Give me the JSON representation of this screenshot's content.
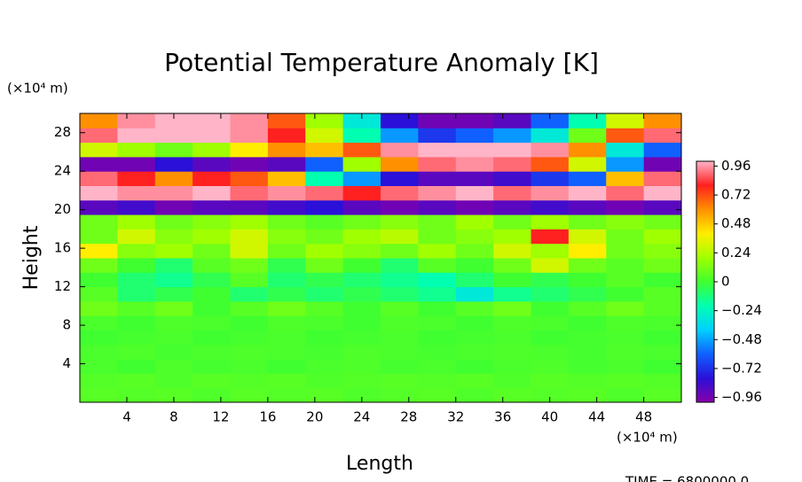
{
  "chart_data": {
    "type": "heatmap",
    "title": "Potential Temperature Anomaly [K]",
    "xlabel": "Length",
    "ylabel": "Height",
    "xunit": "(×10⁴ m)",
    "yunit": "(×10⁴ m)",
    "footer": "TIME = 6800000.0",
    "xlim": [
      0,
      51.2
    ],
    "ylim": [
      0,
      30
    ],
    "xticks": [
      4,
      8,
      12,
      16,
      20,
      24,
      28,
      32,
      36,
      40,
      44,
      48
    ],
    "yticks": [
      4,
      8,
      12,
      16,
      20,
      24,
      28
    ],
    "clim": [
      -1,
      1
    ],
    "cticks": [
      0.96,
      0.72,
      0.48,
      0.24,
      0,
      {
        "value": -0.24,
        "label": "−0.24"
      },
      {
        "value": -0.48,
        "label": "−0.48"
      },
      {
        "value": -0.72,
        "label": "−0.72"
      },
      {
        "value": -0.96,
        "label": "−0.96"
      }
    ],
    "colormap": [
      "#8800a8",
      "#2a10d8",
      "#1060ff",
      "#00d0ff",
      "#00ffb0",
      "#40ff30",
      "#a0ff00",
      "#ffee00",
      "#ff9000",
      "#ff2020",
      "#ffb4c8"
    ],
    "x": [
      1.6,
      4.8,
      8,
      11.2,
      14.4,
      17.6,
      20.8,
      24,
      27.2,
      30.4,
      33.6,
      36.8,
      40,
      43.2,
      46.4,
      49.6
    ],
    "y": [
      0.75,
      2.25,
      3.75,
      5.25,
      6.75,
      8.25,
      9.75,
      11.25,
      12.75,
      14.25,
      15.75,
      17.25,
      18.75,
      20.25,
      21.75,
      23.25,
      24.75,
      26.25,
      27.75,
      29.25
    ],
    "z": [
      [
        0.05,
        0.04,
        0.05,
        0.03,
        0.05,
        0.04,
        0.05,
        0.03,
        0.04,
        0.05,
        0.03,
        0.05,
        0.04,
        0.05,
        0.03,
        0.05
      ],
      [
        0.04,
        0.05,
        0.03,
        0.05,
        0.04,
        0.05,
        0.03,
        0.04,
        0.05,
        0.04,
        0.05,
        0.03,
        0.05,
        0.04,
        0.05,
        0.04
      ],
      [
        0.02,
        0.0,
        0.03,
        0.01,
        0.02,
        0.0,
        0.02,
        0.03,
        0.01,
        0.02,
        0.0,
        0.02,
        0.03,
        0.01,
        0.02,
        0.0
      ],
      [
        0.02,
        0.03,
        0.01,
        0.02,
        0.03,
        0.02,
        0.01,
        0.03,
        0.02,
        0.01,
        0.02,
        0.03,
        0.02,
        0.01,
        0.03,
        0.02
      ],
      [
        0.0,
        0.01,
        0.02,
        0.0,
        0.01,
        0.02,
        0.0,
        0.01,
        0.02,
        0.0,
        0.01,
        0.02,
        0.0,
        0.01,
        0.02,
        0.0
      ],
      [
        0.02,
        0.0,
        0.03,
        0.02,
        0.0,
        0.03,
        0.02,
        0.0,
        0.03,
        0.02,
        0.0,
        0.03,
        0.02,
        0.0,
        0.03,
        0.02
      ],
      [
        0.1,
        0.05,
        0.1,
        0.0,
        0.05,
        0.1,
        0.05,
        0.0,
        0.05,
        0.0,
        0.05,
        0.1,
        0.0,
        0.05,
        0.1,
        0.05
      ],
      [
        0.05,
        -0.1,
        -0.05,
        0.0,
        -0.1,
        -0.05,
        -0.1,
        -0.05,
        -0.1,
        -0.15,
        -0.3,
        -0.15,
        -0.1,
        -0.05,
        0.0,
        0.05
      ],
      [
        0.0,
        -0.1,
        -0.15,
        -0.05,
        0.05,
        -0.1,
        -0.05,
        -0.1,
        -0.15,
        -0.2,
        -0.1,
        0.0,
        -0.05,
        0.0,
        0.05,
        0.0
      ],
      [
        0.1,
        0.0,
        -0.1,
        0.05,
        0.1,
        -0.05,
        0.1,
        0.0,
        -0.1,
        0.05,
        0.0,
        0.1,
        0.3,
        0.1,
        0.05,
        0.1
      ],
      [
        0.4,
        0.15,
        0.2,
        0.1,
        0.3,
        0.1,
        0.2,
        0.15,
        0.1,
        0.2,
        0.1,
        0.3,
        0.2,
        0.4,
        0.1,
        0.15
      ],
      [
        0.1,
        0.3,
        0.15,
        0.2,
        0.3,
        0.15,
        0.1,
        0.2,
        0.25,
        0.1,
        0.15,
        0.2,
        0.8,
        0.3,
        0.1,
        0.2
      ],
      [
        0.1,
        0.2,
        0.1,
        0.15,
        0.2,
        0.1,
        0.05,
        0.1,
        0.15,
        0.1,
        0.2,
        0.1,
        0.2,
        0.1,
        0.15,
        0.1
      ],
      [
        -0.9,
        -0.85,
        -0.95,
        -0.9,
        -0.9,
        -0.85,
        -0.8,
        -0.9,
        -0.95,
        -0.9,
        -0.95,
        -0.9,
        -0.85,
        -0.9,
        -0.95,
        -0.9
      ],
      [
        1,
        0.95,
        0.95,
        1,
        0.9,
        0.95,
        0.9,
        0.8,
        0.9,
        0.95,
        1,
        0.9,
        0.95,
        1,
        0.9,
        1
      ],
      [
        0.9,
        0.8,
        0.6,
        0.8,
        0.7,
        0.5,
        -0.2,
        -0.5,
        -0.8,
        -0.9,
        -0.9,
        -0.85,
        -0.7,
        -0.6,
        0.5,
        0.9
      ],
      [
        -0.95,
        -0.95,
        -0.8,
        -0.9,
        -0.95,
        -0.9,
        -0.6,
        0.2,
        0.6,
        0.9,
        0.95,
        0.9,
        0.7,
        0.3,
        -0.5,
        -0.95
      ],
      [
        0.3,
        0.2,
        0.1,
        0.2,
        0.4,
        0.6,
        0.5,
        0.7,
        0.95,
        1,
        1,
        1,
        0.95,
        0.6,
        -0.3,
        -0.6
      ],
      [
        0.9,
        1,
        1,
        1,
        0.95,
        0.8,
        0.3,
        -0.2,
        -0.5,
        -0.7,
        -0.6,
        -0.5,
        -0.3,
        0.1,
        0.7,
        0.9
      ],
      [
        0.6,
        0.95,
        1,
        1,
        0.95,
        0.7,
        0.2,
        -0.3,
        -0.8,
        -0.95,
        -0.95,
        -0.9,
        -0.6,
        -0.2,
        0.3,
        0.6
      ]
    ]
  }
}
